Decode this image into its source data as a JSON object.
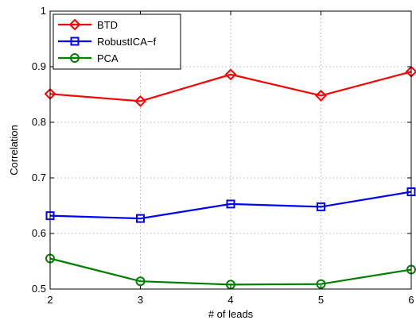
{
  "chart_data": {
    "type": "line",
    "xlabel": "# of leads",
    "ylabel": "Correlation",
    "x": [
      2,
      3,
      4,
      5,
      6
    ],
    "xlim": [
      2,
      6
    ],
    "ylim": [
      0.5,
      1
    ],
    "xticks": [
      "2",
      "3",
      "4",
      "5",
      "6"
    ],
    "yticks": [
      "0.5",
      "0.6",
      "0.7",
      "0.8",
      "0.9",
      "1"
    ],
    "grid": true,
    "legend_position": "top-left",
    "series": [
      {
        "name": "BTD",
        "values": [
          0.851,
          0.838,
          0.886,
          0.848,
          0.891
        ],
        "color": "#ff0000",
        "marker": "diamond"
      },
      {
        "name": "RobustICA−f",
        "values": [
          0.632,
          0.627,
          0.653,
          0.648,
          0.675
        ],
        "color": "#0000ff",
        "marker": "square"
      },
      {
        "name": "PCA",
        "values": [
          0.555,
          0.514,
          0.508,
          0.509,
          0.535
        ],
        "color": "#008000",
        "marker": "circle"
      }
    ]
  }
}
